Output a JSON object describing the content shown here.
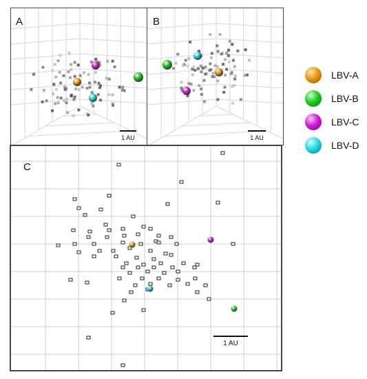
{
  "panels": [
    {
      "id": "A",
      "label": "A",
      "scale_label": "1 AU"
    },
    {
      "id": "B",
      "label": "B",
      "scale_label": "1 AU"
    },
    {
      "id": "C",
      "label": "C",
      "scale_label": "1 AU"
    }
  ],
  "legend": [
    {
      "key": "LBV-A",
      "label": "LBV-A",
      "color": "#e89a10"
    },
    {
      "key": "LBV-B",
      "label": "LBV-B",
      "color": "#1fce1f"
    },
    {
      "key": "LBV-C",
      "label": "LBV-C",
      "color": "#d21ad8"
    },
    {
      "key": "LBV-D",
      "label": "LBV-D",
      "color": "#22d9e3"
    }
  ]
}
